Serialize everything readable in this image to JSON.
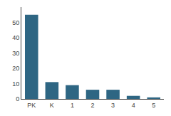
{
  "chart_data": {
    "type": "bar",
    "categories": [
      "PK",
      "K",
      "1",
      "2",
      "3",
      "4",
      "5"
    ],
    "values": [
      55,
      11,
      9,
      6,
      6,
      2,
      1
    ],
    "color": "#2e6683",
    "ylim": [
      0,
      60
    ],
    "yticks": [
      0,
      10,
      20,
      30,
      40,
      50
    ],
    "grid": false
  }
}
